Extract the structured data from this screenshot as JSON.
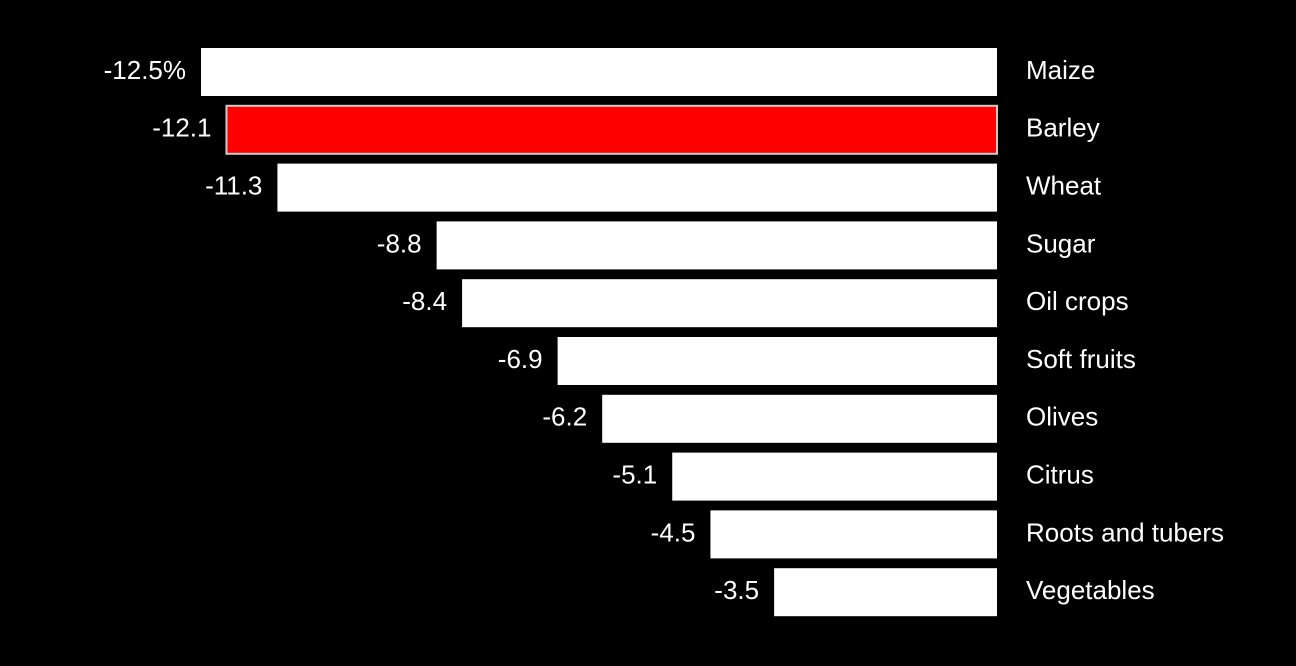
{
  "chart_data": {
    "type": "hbar",
    "categories": [
      "Maize",
      "Barley",
      "Wheat",
      "Sugar",
      "Oil crops",
      "Soft fruits",
      "Olives",
      "Citrus",
      "Roots and tubers",
      "Vegetables"
    ],
    "values": [
      -12.5,
      -12.1,
      -11.3,
      -8.8,
      -8.4,
      -6.9,
      -6.2,
      -5.1,
      -4.5,
      -3.5
    ],
    "value_labels": [
      "-12.5%",
      "-12.1",
      "-11.3",
      "-8.8",
      "-8.4",
      "-6.9",
      "-6.2",
      "-5.1",
      "-4.5",
      "-3.5"
    ],
    "colors": [
      "#ffffff",
      "#ff0000",
      "#ffffff",
      "#ffffff",
      "#ffffff",
      "#ffffff",
      "#ffffff",
      "#ffffff",
      "#ffffff",
      "#ffffff"
    ]
  }
}
